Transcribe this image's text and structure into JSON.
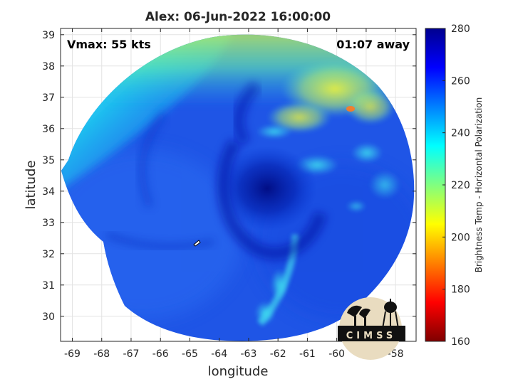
{
  "chart_data": {
    "type": "heatmap",
    "title": "Alex: 06-Jun-2022 16:00:00",
    "xlabel": "longitude",
    "ylabel": "latitude",
    "xlim": [
      -69.4,
      -57.3
    ],
    "ylim": [
      29.2,
      39.2
    ],
    "x_ticks": [
      -69,
      -68,
      -67,
      -66,
      -65,
      -64,
      -63,
      -62,
      -61,
      -60,
      -59,
      -58
    ],
    "y_ticks": [
      30,
      31,
      32,
      33,
      34,
      35,
      36,
      37,
      38,
      39
    ],
    "grid": true,
    "annotations": {
      "vmax": "Vmax: 55 kts",
      "time_away": "01:07 away"
    },
    "colorbar": {
      "label": "Brightness Temp - Horizontal Polarization",
      "range": [
        160,
        280
      ],
      "ticks": [
        160,
        180,
        200,
        220,
        240,
        260,
        280
      ],
      "colormap": [
        "#7f0000",
        "#ff0000",
        "#ff8000",
        "#ffff00",
        "#80ff80",
        "#00ffff",
        "#0080ff",
        "#0000ff",
        "#00008f"
      ]
    },
    "scene": {
      "storm_center": [
        -62.6,
        34.2
      ],
      "scan_center": [
        -63.3,
        34.3
      ],
      "typical_values": {
        "storm_core": 268,
        "ocean_background": 255,
        "northwest_edge": 232,
        "north_cloud_band": 210,
        "east_rain_cells": 235
      }
    }
  },
  "logo": {
    "text": "CIMSS"
  }
}
